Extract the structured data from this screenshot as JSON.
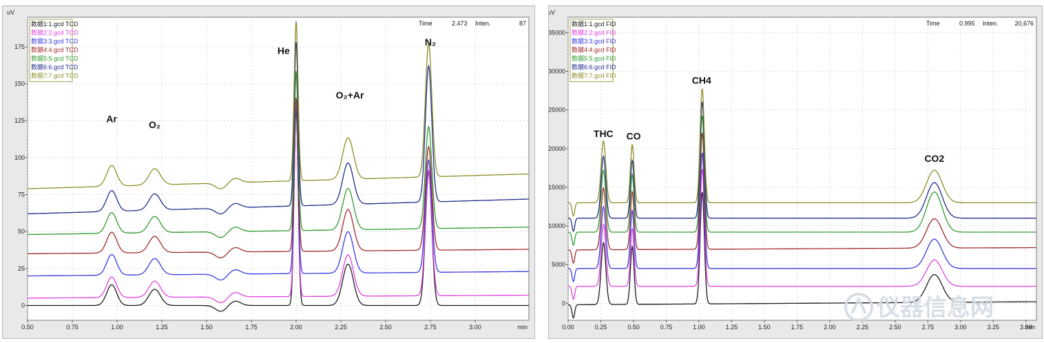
{
  "chart_data": [
    {
      "type": "line",
      "detector": "TCD",
      "y_unit": "uV",
      "x_unit": "min",
      "xlim": [
        0.5,
        3.3
      ],
      "ylim": [
        -10,
        195
      ],
      "x_ticks": [
        "0.50",
        "0.75",
        "1.00",
        "1.25",
        "1.50",
        "1.75",
        "2.00",
        "2.25",
        "2.50",
        "2.75",
        "3.00"
      ],
      "y_ticks": [
        "0",
        "25",
        "50",
        "75",
        "100",
        "125",
        "150",
        "175"
      ],
      "cursor": {
        "time_label": "Time",
        "time_value": "2.473",
        "inten_label": "Inten.",
        "inten_value": "87"
      },
      "legend_placement": "top-left",
      "peak_labels": [
        {
          "text": "Ar",
          "x": 0.97,
          "y": 124
        },
        {
          "text": "O₂",
          "x": 1.21,
          "y": 120
        },
        {
          "text": "He",
          "x": 1.93,
          "y": 170
        },
        {
          "text": "O₂+Ar",
          "x": 2.3,
          "y": 140
        },
        {
          "text": "N₂",
          "x": 2.75,
          "y": 176
        }
      ],
      "series": [
        {
          "name": "数据1:1.gcd TCD",
          "color": "#1a1a1a",
          "baseline": 0,
          "drift": 0,
          "peaks": [
            [
              0.97,
              14,
              0.028
            ],
            [
              1.21,
              11,
              0.032
            ],
            [
              1.58,
              -4,
              0.03
            ],
            [
              1.66,
              3,
              0.03
            ],
            [
              2.0,
              137,
              0.011
            ],
            [
              2.29,
              28,
              0.03
            ],
            [
              2.74,
              90,
              0.018
            ]
          ]
        },
        {
          "name": "数据2:2.gcd TCD",
          "color": "#e040e0",
          "baseline": 5,
          "drift": 2,
          "peaks": [
            [
              0.97,
              14,
              0.028
            ],
            [
              1.21,
              11,
              0.032
            ],
            [
              1.58,
              -4,
              0.03
            ],
            [
              1.66,
              3,
              0.03
            ],
            [
              2.0,
              131,
              0.011
            ],
            [
              2.29,
              28,
              0.03
            ],
            [
              2.74,
              85,
              0.018
            ]
          ]
        },
        {
          "name": "数据3:3.gcd TCD",
          "color": "#3838e0",
          "baseline": 20,
          "drift": 3,
          "peaks": [
            [
              0.97,
              14,
              0.028
            ],
            [
              1.21,
              11,
              0.032
            ],
            [
              1.58,
              -4,
              0.03
            ],
            [
              1.66,
              3,
              0.03
            ],
            [
              2.0,
              110,
              0.011
            ],
            [
              2.29,
              28,
              0.03
            ],
            [
              2.74,
              76,
              0.018
            ]
          ]
        },
        {
          "name": "数据4:4.gcd TCD",
          "color": "#a02828",
          "baseline": 35,
          "drift": 3,
          "peaks": [
            [
              0.97,
              14,
              0.028
            ],
            [
              1.21,
              11,
              0.032
            ],
            [
              1.58,
              -4,
              0.03
            ],
            [
              1.66,
              3,
              0.03
            ],
            [
              2.0,
              104,
              0.011
            ],
            [
              2.29,
              28,
              0.03
            ],
            [
              2.74,
              70,
              0.018
            ]
          ]
        },
        {
          "name": "数据5:5.gcd TCD",
          "color": "#2e9a2e",
          "baseline": 48,
          "drift": 5,
          "peaks": [
            [
              0.97,
              14,
              0.028
            ],
            [
              1.21,
              11,
              0.032
            ],
            [
              1.58,
              -4,
              0.03
            ],
            [
              1.66,
              3,
              0.03
            ],
            [
              2.0,
              108,
              0.011
            ],
            [
              2.29,
              28,
              0.03
            ],
            [
              2.74,
              69,
              0.018
            ]
          ]
        },
        {
          "name": "数据6:6.gcd TCD",
          "color": "#1e2a8a",
          "baseline": 62,
          "drift": 10,
          "peaks": [
            [
              0.97,
              14,
              0.028
            ],
            [
              1.21,
              11,
              0.032
            ],
            [
              1.58,
              -4,
              0.03
            ],
            [
              1.66,
              3,
              0.03
            ],
            [
              2.0,
              111,
              0.011
            ],
            [
              2.29,
              28,
              0.03
            ],
            [
              2.74,
              92,
              0.018
            ]
          ]
        },
        {
          "name": "数据7:7.gcd TCD",
          "color": "#8c8c28",
          "baseline": 79,
          "drift": 10,
          "peaks": [
            [
              0.97,
              14,
              0.028
            ],
            [
              1.21,
              11,
              0.032
            ],
            [
              1.58,
              -4,
              0.03
            ],
            [
              1.66,
              3,
              0.03
            ],
            [
              2.0,
              108,
              0.011
            ],
            [
              2.29,
              28,
              0.03
            ],
            [
              2.74,
              90,
              0.018
            ]
          ]
        }
      ]
    },
    {
      "type": "line",
      "detector": "FID",
      "y_unit": "uV",
      "x_unit": "min",
      "xlim": [
        0.0,
        3.58
      ],
      "ylim": [
        -2200,
        37000
      ],
      "x_ticks": [
        "0.00",
        "0.25",
        "0.50",
        "0.75",
        "1.00",
        "1.25",
        "1.50",
        "1.75",
        "2.00",
        "2.25",
        "2.50",
        "2.75",
        "3.00",
        "3.25",
        "3.50"
      ],
      "y_ticks": [
        "0",
        "5000",
        "10000",
        "15000",
        "20000",
        "25000",
        "30000",
        "35000"
      ],
      "cursor": {
        "time_label": "Time",
        "time_value": "0.995",
        "inten_label": "Inten.",
        "inten_value": "20,676"
      },
      "legend_placement": "top-left",
      "peak_labels": [
        {
          "text": "THC",
          "x": 0.27,
          "y": 21500
        },
        {
          "text": "CO",
          "x": 0.5,
          "y": 21200
        },
        {
          "text": "CH4",
          "x": 1.02,
          "y": 28400
        },
        {
          "text": "CO2",
          "x": 2.8,
          "y": 18300
        }
      ],
      "series": [
        {
          "name": "数据1:1.gcd FID",
          "color": "#1a1a1a",
          "baseline": -200,
          "drift": 400,
          "peaks": [
            [
              0.04,
              -1700,
              0.01
            ],
            [
              0.27,
              8000,
              0.018
            ],
            [
              0.49,
              7500,
              0.014
            ],
            [
              1.025,
              14500,
              0.016
            ],
            [
              2.8,
              3600,
              0.06
            ]
          ]
        },
        {
          "name": "数据2:2.gcd FID",
          "color": "#e040e0",
          "baseline": 2200,
          "drift": 0,
          "peaks": [
            [
              0.04,
              -1700,
              0.01
            ],
            [
              0.27,
              8000,
              0.018
            ],
            [
              0.49,
              7500,
              0.014
            ],
            [
              1.025,
              15200,
              0.016
            ],
            [
              2.8,
              3400,
              0.06
            ]
          ]
        },
        {
          "name": "数据3:3.gcd FID",
          "color": "#3838e0",
          "baseline": 4500,
          "drift": 0,
          "peaks": [
            [
              0.04,
              -1700,
              0.01
            ],
            [
              0.27,
              8000,
              0.018
            ],
            [
              0.49,
              7500,
              0.014
            ],
            [
              1.025,
              15000,
              0.016
            ],
            [
              2.8,
              3800,
              0.06
            ]
          ]
        },
        {
          "name": "数据4:4.gcd FID",
          "color": "#a02828",
          "baseline": 6900,
          "drift": 300,
          "peaks": [
            [
              0.04,
              -1700,
              0.01
            ],
            [
              0.27,
              8000,
              0.018
            ],
            [
              0.49,
              7500,
              0.014
            ],
            [
              1.025,
              15100,
              0.016
            ],
            [
              2.8,
              3800,
              0.06
            ]
          ]
        },
        {
          "name": "数据5:5.gcd FID",
          "color": "#2e9a2e",
          "baseline": 9200,
          "drift": 0,
          "peaks": [
            [
              0.04,
              -1700,
              0.01
            ],
            [
              0.27,
              8000,
              0.018
            ],
            [
              0.49,
              7500,
              0.014
            ],
            [
              1.025,
              15100,
              0.016
            ],
            [
              2.8,
              5200,
              0.06
            ]
          ]
        },
        {
          "name": "数据6:6.gcd FID",
          "color": "#1e2a8a",
          "baseline": 11000,
          "drift": 0,
          "peaks": [
            [
              0.04,
              -1700,
              0.01
            ],
            [
              0.27,
              8000,
              0.018
            ],
            [
              0.49,
              7500,
              0.014
            ],
            [
              1.025,
              15100,
              0.016
            ],
            [
              2.8,
              4600,
              0.06
            ]
          ]
        },
        {
          "name": "数据7:7.gcd FID",
          "color": "#8c8c28",
          "baseline": 13000,
          "drift": 0,
          "peaks": [
            [
              0.04,
              -1700,
              0.01
            ],
            [
              0.27,
              8000,
              0.018
            ],
            [
              0.49,
              7500,
              0.014
            ],
            [
              1.025,
              14800,
              0.016
            ],
            [
              2.8,
              4200,
              0.06
            ]
          ]
        }
      ]
    }
  ],
  "watermark": {
    "text": "仪器信息网",
    "logo_icon": "instrument-logo-icon"
  }
}
